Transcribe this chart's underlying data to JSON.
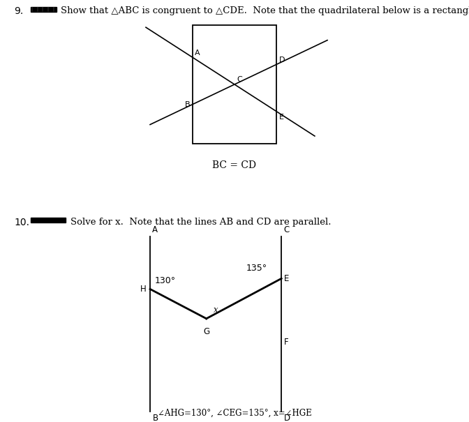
{
  "bg_color": "#ffffff",
  "fig_width": 6.72,
  "fig_height": 6.05,
  "q9_number": "9.",
  "q9_text": "Show that △ABC is congruent to △CDE.  Note that the quadrilateral below is a rectangle.",
  "q9_caption": "BC = CD",
  "q10_number": "10.",
  "q10_text": "Solve for x.  Note that the lines AB and CD are parallel.",
  "q10_caption": "∠AHG=130°, ∠CEG=135°, x=∠HGE"
}
